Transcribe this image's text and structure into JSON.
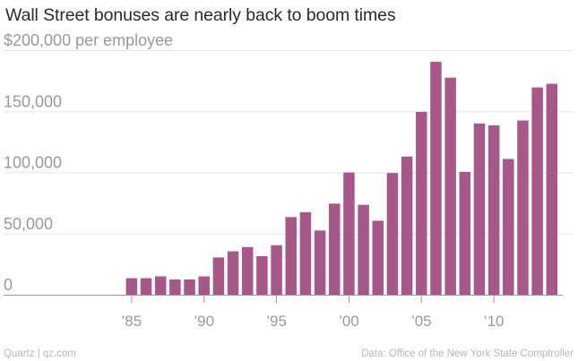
{
  "header": {
    "title": "Wall Street bonuses are nearly back to boom times"
  },
  "footer": {
    "source_left": "Quartz | qz.com",
    "source_right": "Data: Office of the New York State Comptroller"
  },
  "colors": {
    "bar": "#a8578a",
    "grid": "#e6e6e6",
    "axis": "#9a9a9a",
    "tick_text": "#9a9a9a",
    "title": "#2b2b2b"
  },
  "chart_data": {
    "type": "bar",
    "title": "Wall Street bonuses are nearly back to boom times",
    "xlabel": "",
    "ylabel": "per employee",
    "ylim": [
      0,
      200000
    ],
    "y_ticks": [
      0,
      50000,
      100000,
      150000,
      200000
    ],
    "y_tick_labels": [
      "0",
      "50,000",
      "100,000",
      "150,000",
      "$200,000 per employee"
    ],
    "x_range": [
      1980,
      2015
    ],
    "x_ticks": [
      1985,
      1990,
      1995,
      2000,
      2005,
      2010
    ],
    "x_tick_labels": [
      "’85",
      "’90",
      "’95",
      "’00",
      "’05",
      "’10"
    ],
    "categories": [
      1985,
      1986,
      1987,
      1988,
      1989,
      1990,
      1991,
      1992,
      1993,
      1994,
      1995,
      1996,
      1997,
      1998,
      1999,
      2000,
      2001,
      2002,
      2003,
      2004,
      2005,
      2006,
      2007,
      2008,
      2009,
      2010,
      2011,
      2012,
      2013,
      2014
    ],
    "values": [
      13500,
      13500,
      15000,
      12500,
      12500,
      15000,
      30500,
      35500,
      39000,
      31500,
      40500,
      63500,
      67500,
      52500,
      74500,
      100000,
      73500,
      60500,
      99500,
      113000,
      149500,
      190500,
      177500,
      100500,
      140000,
      138500,
      111000,
      142500,
      169500,
      172500
    ],
    "grid": true
  }
}
